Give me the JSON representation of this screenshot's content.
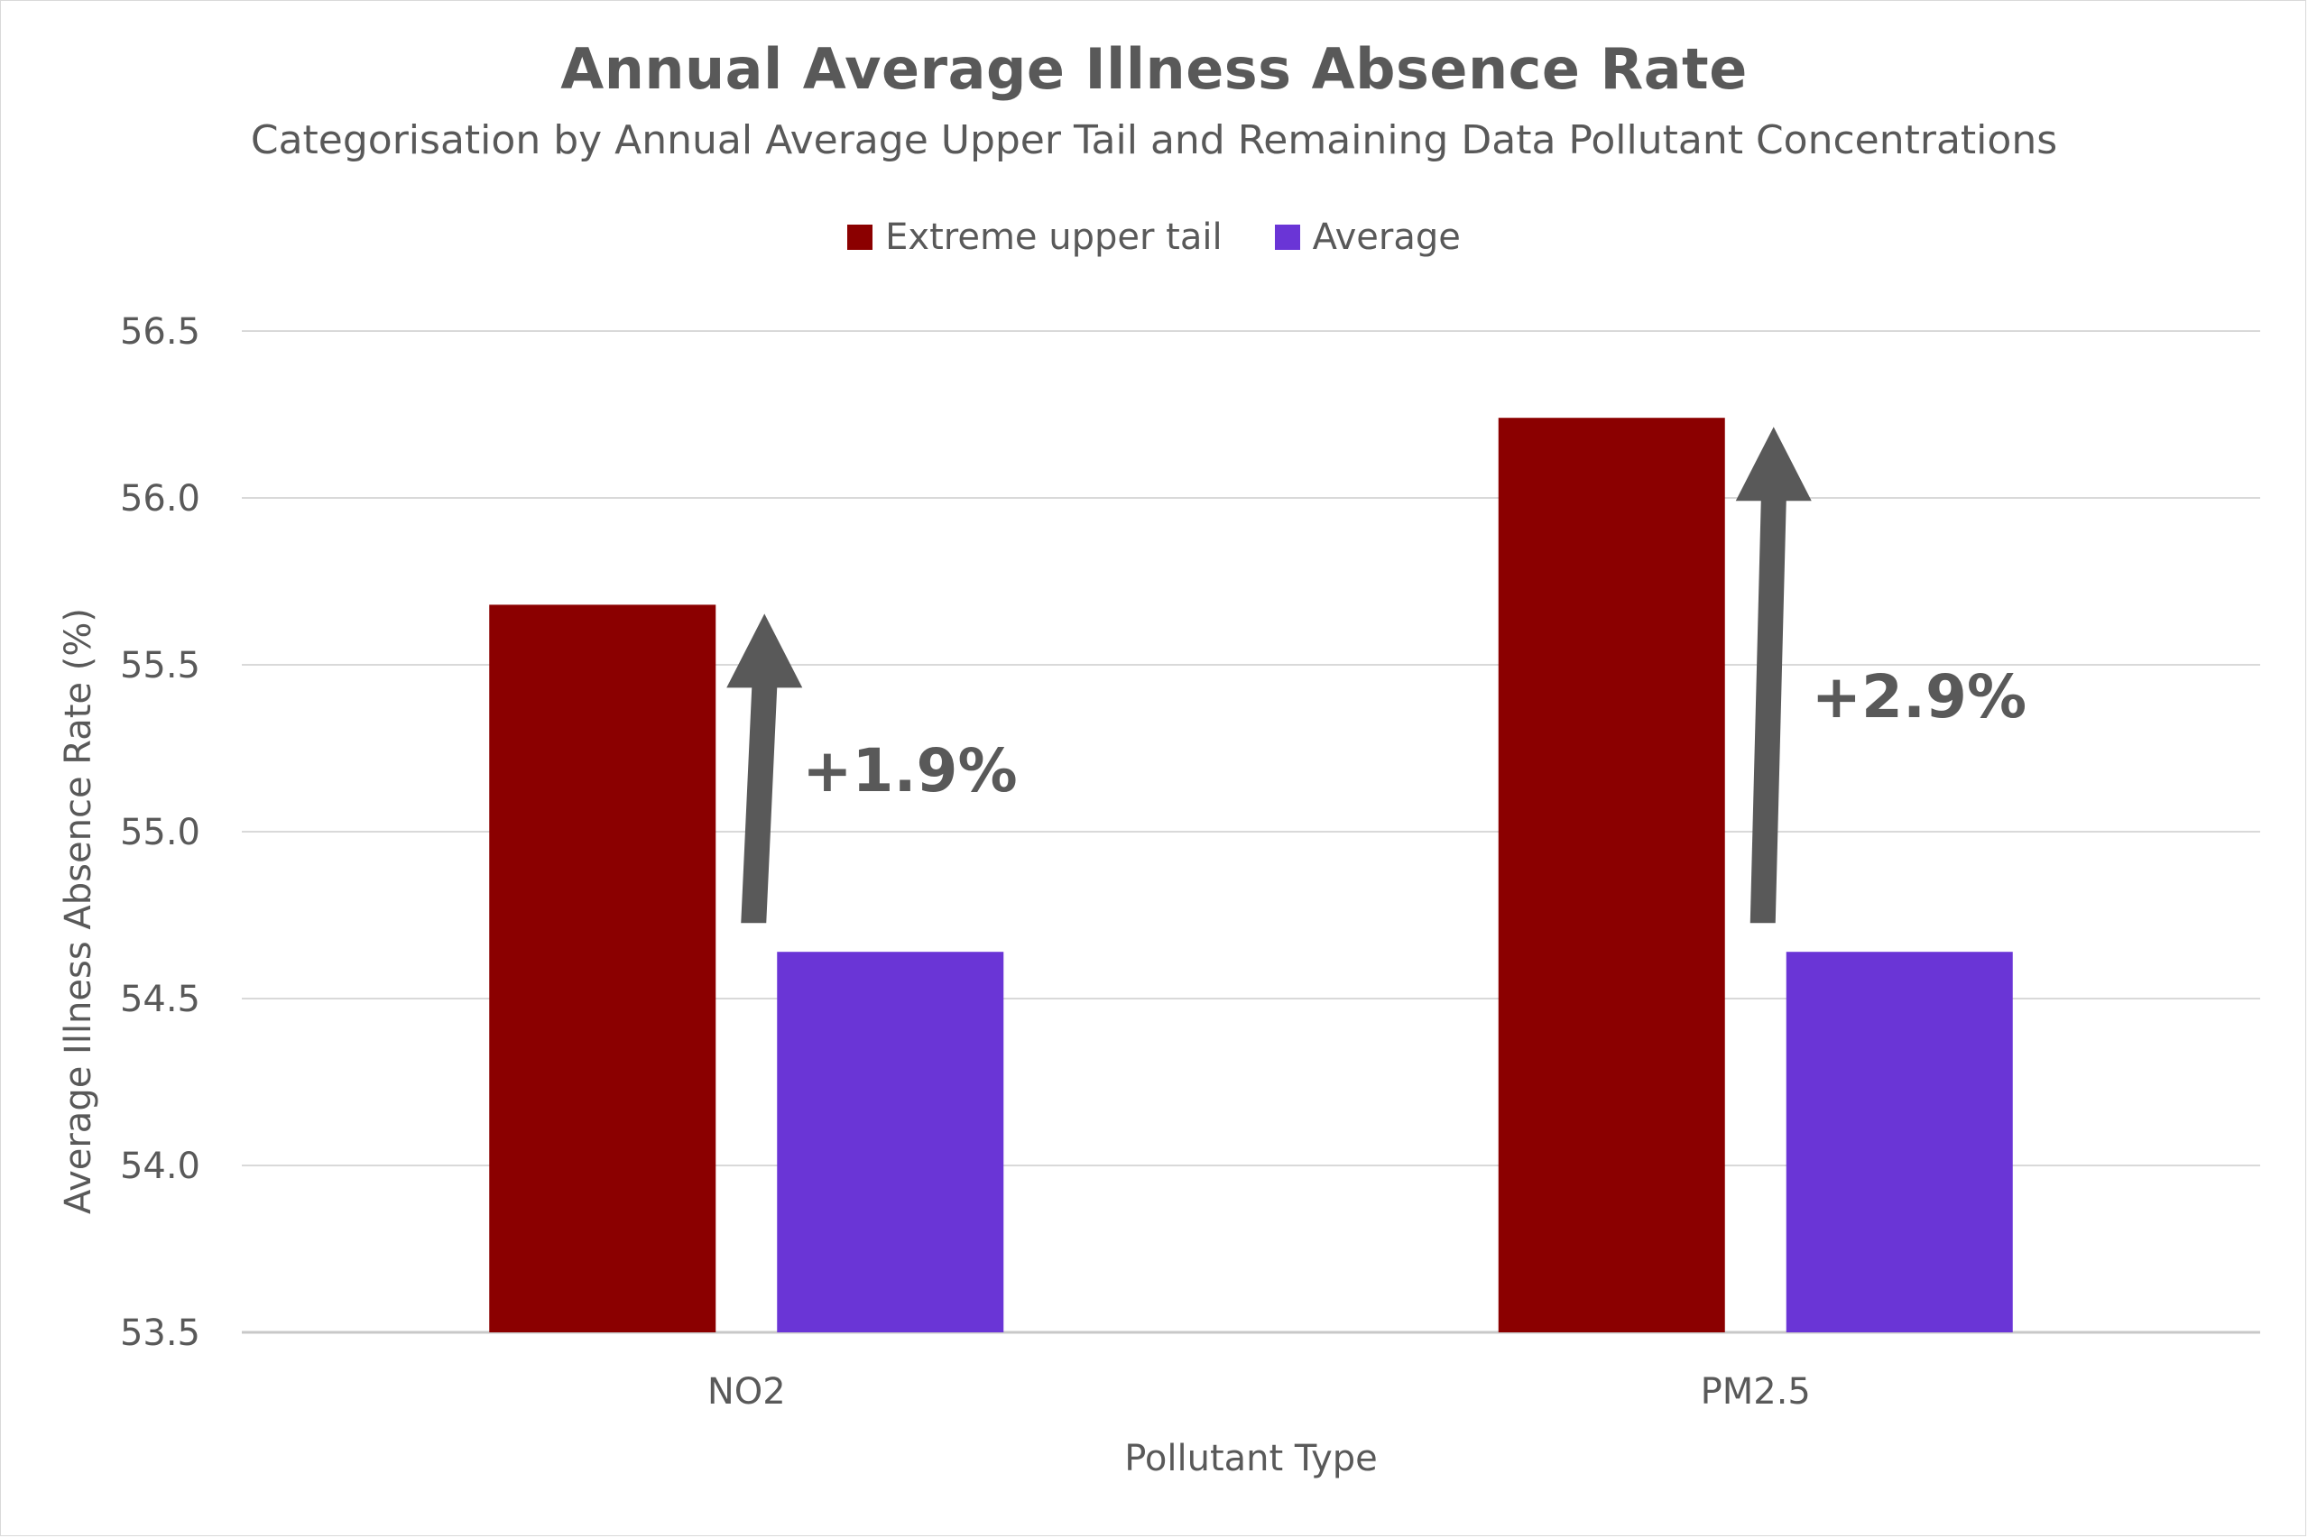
{
  "chart_data": {
    "type": "bar",
    "title": "Annual Average Illness Absence Rate",
    "subtitle": "Categorisation by Annual Average Upper Tail and Remaining Data Pollutant Concentrations",
    "xlabel": "Pollutant Type",
    "ylabel": "Average Illness Absence Rate (%)",
    "categories": [
      "NO2",
      "PM2.5"
    ],
    "series": [
      {
        "name": "Extreme upper tail",
        "color": "#8B0000",
        "values": [
          55.68,
          56.24
        ]
      },
      {
        "name": "Average",
        "color": "#6A35D6",
        "values": [
          54.64,
          54.64
        ]
      }
    ],
    "ylim": [
      53.5,
      56.5
    ],
    "yticks": [
      "53.5",
      "54.0",
      "54.5",
      "55.0",
      "55.5",
      "56.0",
      "56.5"
    ],
    "grid": true,
    "legend_position": "top-center",
    "annotations": [
      {
        "category": "NO2",
        "text": "+1.9%"
      },
      {
        "category": "PM2.5",
        "text": "+2.9%"
      }
    ]
  }
}
